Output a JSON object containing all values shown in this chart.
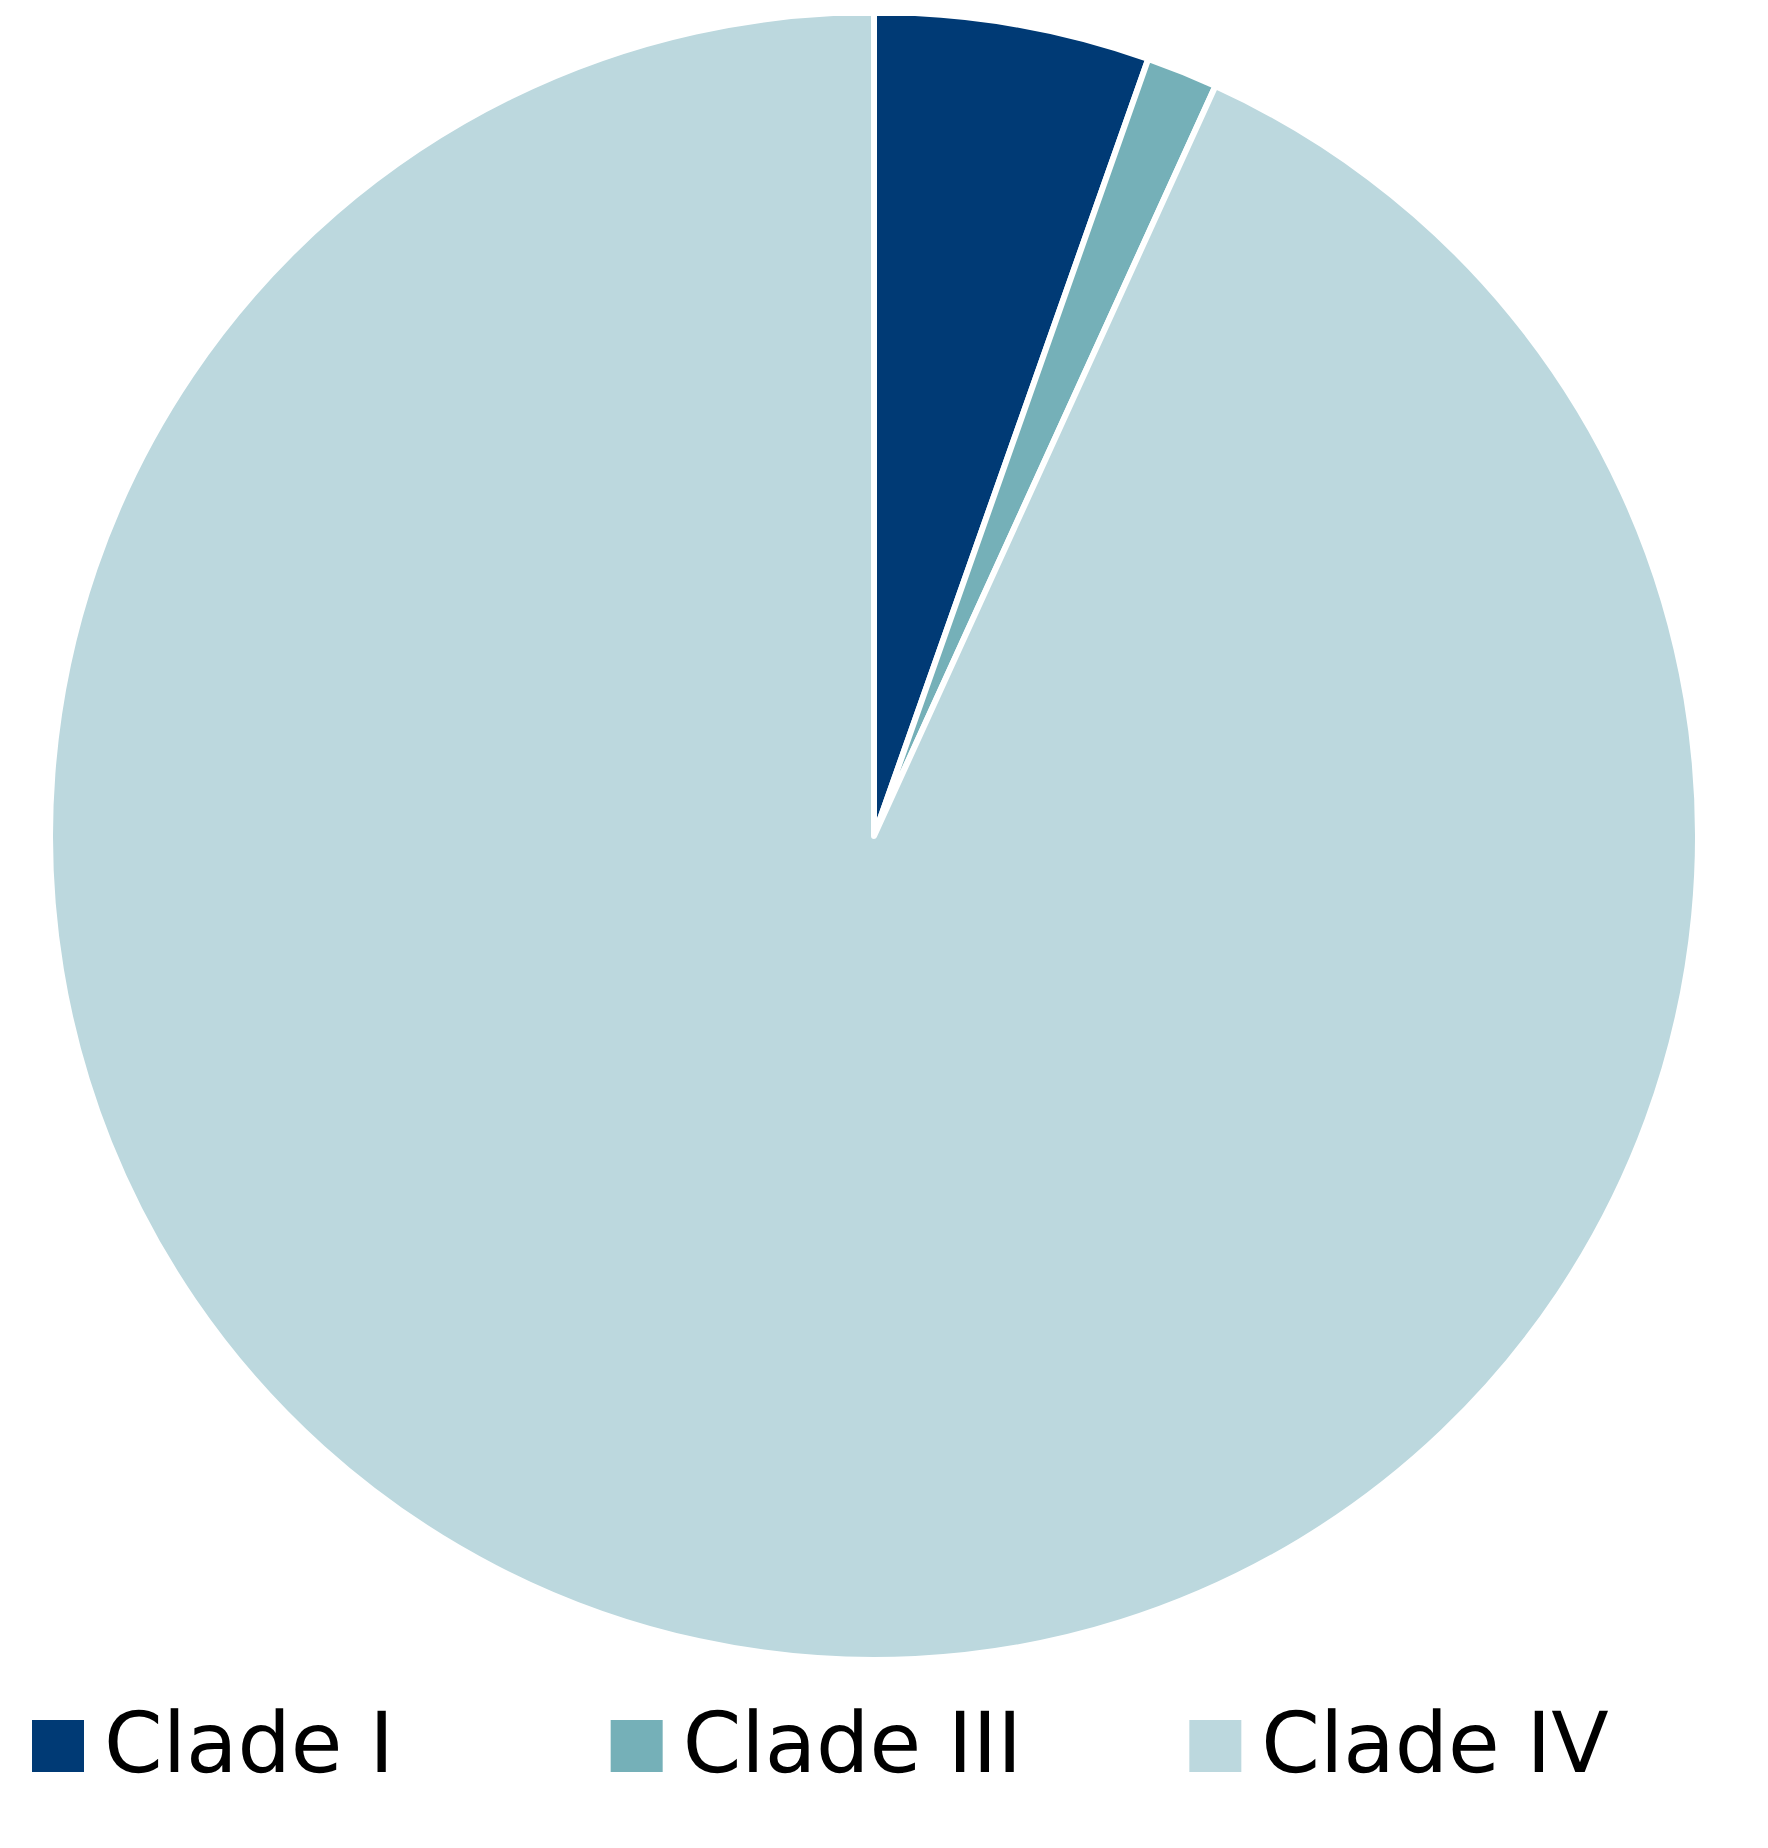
{
  "chart_data": {
    "type": "pie",
    "categories": [
      "Clade I",
      "Clade III",
      "Clade IV"
    ],
    "values": [
      5.4,
      1.4,
      93.2
    ],
    "colors": [
      "#003a75",
      "#75b0b8",
      "#bcd8de"
    ],
    "legend": "bottom"
  }
}
